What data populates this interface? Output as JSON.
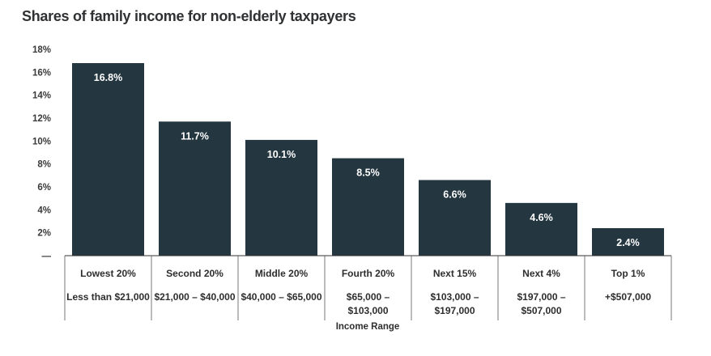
{
  "chart_data": {
    "type": "bar",
    "title": "Shares of family income for non-elderly taxpayers",
    "xlabel": "Income Range",
    "ylabel": "",
    "ylim": [
      0,
      18
    ],
    "yticks": [
      "18%",
      "16%",
      "14%",
      "12%",
      "10%",
      "8%",
      "6%",
      "4%",
      "2%",
      "—"
    ],
    "categories": [
      "Lowest 20%",
      "Second 20%",
      "Middle 20%",
      "Fourth 20%",
      "Next 15%",
      "Next 4%",
      "Top 1%"
    ],
    "income_ranges": [
      [
        "Less than $21,000"
      ],
      [
        "$21,000 – $40,000"
      ],
      [
        "$40,000 – $65,000"
      ],
      [
        "$65,000 –",
        "$103,000"
      ],
      [
        "$103,000 –",
        "$197,000"
      ],
      [
        "$197,000 –",
        "$507,000"
      ],
      [
        "+$507,000"
      ]
    ],
    "values": [
      16.8,
      11.7,
      10.1,
      8.5,
      6.6,
      4.6,
      2.4
    ],
    "data_labels": [
      "16.8%",
      "11.7%",
      "10.1%",
      "8.5%",
      "6.6%",
      "4.6%",
      "2.4%"
    ],
    "bar_color": "#243640",
    "grid": false,
    "legend": "none"
  }
}
